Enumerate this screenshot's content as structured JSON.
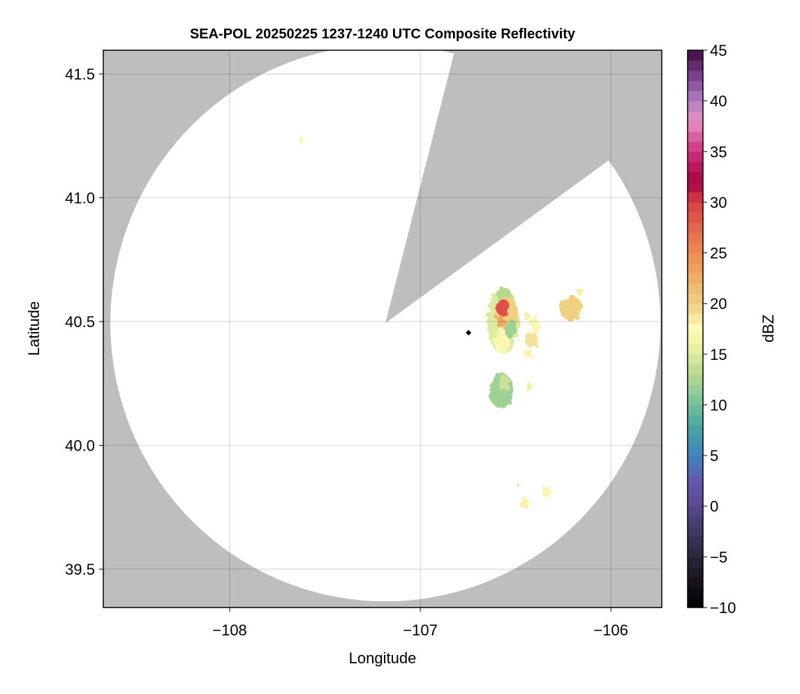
{
  "chart_data": {
    "type": "heatmap",
    "title": "SEA-POL 20250225 1237-1240 UTC Composite Reflectivity",
    "xlabel": "Longitude",
    "ylabel": "Latitude",
    "xlim": [
      -108.663,
      -105.733
    ],
    "ylim": [
      39.345,
      41.596
    ],
    "xticks": [
      -108,
      -107,
      -106
    ],
    "xtick_labels": [
      "−108",
      "−107",
      "−106"
    ],
    "yticks": [
      39.5,
      40.0,
      40.5,
      41.0,
      41.5
    ],
    "ytick_labels": [
      "39.5",
      "40.0",
      "40.5",
      "41.0",
      "41.5"
    ],
    "grid": true,
    "background_color": "#bebebe",
    "radar": {
      "center": [
        -107.183,
        40.494
      ],
      "range_deg_lon": 1.443,
      "range_deg_lat": 1.124,
      "blocked_sector_edges": [
        [
          -106.842,
          41.525
        ],
        [
          -106.062,
          41.123
        ]
      ]
    },
    "marker": {
      "lon": -106.747,
      "lat": 40.455,
      "shape": "diamond",
      "color": "#000000"
    },
    "echo_cells": [
      {
        "lon": -106.565,
        "lat": 40.5,
        "rlon": 0.085,
        "rlat": 0.13,
        "dbz": 15
      },
      {
        "lon": -106.56,
        "lat": 40.6,
        "rlon": 0.04,
        "rlat": 0.04,
        "dbz": 13
      },
      {
        "lon": -106.55,
        "lat": 40.53,
        "rlon": 0.06,
        "rlat": 0.07,
        "dbz": 20
      },
      {
        "lon": -106.565,
        "lat": 40.555,
        "rlon": 0.035,
        "rlat": 0.035,
        "dbz": 29
      },
      {
        "lon": -106.58,
        "lat": 40.5,
        "rlon": 0.025,
        "rlat": 0.025,
        "dbz": 23
      },
      {
        "lon": -106.575,
        "lat": 40.42,
        "rlon": 0.04,
        "rlat": 0.05,
        "dbz": 17
      },
      {
        "lon": -106.525,
        "lat": 40.47,
        "rlon": 0.03,
        "rlat": 0.04,
        "dbz": 12
      },
      {
        "lon": -106.4,
        "lat": 40.485,
        "rlon": 0.025,
        "rlat": 0.04,
        "dbz": 17
      },
      {
        "lon": -106.415,
        "lat": 40.425,
        "rlon": 0.035,
        "rlat": 0.03,
        "dbz": 19
      },
      {
        "lon": -106.43,
        "lat": 40.37,
        "rlon": 0.025,
        "rlat": 0.015,
        "dbz": 18
      },
      {
        "lon": -106.44,
        "lat": 40.52,
        "rlon": 0.015,
        "rlat": 0.015,
        "dbz": 16
      },
      {
        "lon": -106.575,
        "lat": 40.22,
        "rlon": 0.065,
        "rlat": 0.07,
        "dbz": 12
      },
      {
        "lon": -106.56,
        "lat": 40.25,
        "rlon": 0.03,
        "rlat": 0.03,
        "dbz": 14
      },
      {
        "lon": -106.43,
        "lat": 40.235,
        "rlon": 0.018,
        "rlat": 0.017,
        "dbz": 16
      },
      {
        "lon": -106.21,
        "lat": 40.555,
        "rlon": 0.06,
        "rlat": 0.05,
        "dbz": 20
      },
      {
        "lon": -106.16,
        "lat": 40.62,
        "rlon": 0.018,
        "rlat": 0.015,
        "dbz": 16
      },
      {
        "lon": -106.458,
        "lat": 39.768,
        "rlon": 0.025,
        "rlat": 0.02,
        "dbz": 18
      },
      {
        "lon": -106.34,
        "lat": 39.81,
        "rlon": 0.025,
        "rlat": 0.02,
        "dbz": 17
      },
      {
        "lon": -106.487,
        "lat": 39.84,
        "rlon": 0.01,
        "rlat": 0.008,
        "dbz": 15
      },
      {
        "lon": -107.63,
        "lat": 41.237,
        "rlon": 0.015,
        "rlat": 0.01,
        "dbz": 17
      }
    ],
    "colorbar": {
      "label": "dBZ",
      "range": [
        -10,
        45
      ],
      "ticks": [
        -10,
        -5,
        0,
        5,
        10,
        15,
        20,
        25,
        30,
        35,
        40,
        45
      ],
      "tick_labels": [
        "−10",
        "−5",
        "0",
        "5",
        "10",
        "15",
        "20",
        "25",
        "30",
        "35",
        "40",
        "45"
      ],
      "colormap_stops": [
        [
          -10,
          "#000000"
        ],
        [
          -5,
          "#2b2538"
        ],
        [
          0,
          "#574a8f"
        ],
        [
          2.5,
          "#6656ae"
        ],
        [
          5,
          "#3e86c0"
        ],
        [
          8,
          "#4aa6a0"
        ],
        [
          10,
          "#72c09b"
        ],
        [
          13,
          "#b6da90"
        ],
        [
          16,
          "#eef3a6"
        ],
        [
          17.5,
          "#fdfab6"
        ],
        [
          20,
          "#f0d080"
        ],
        [
          25,
          "#f08a50"
        ],
        [
          30,
          "#d94045"
        ],
        [
          32,
          "#a70045"
        ],
        [
          35,
          "#d0307f"
        ],
        [
          38,
          "#e690c2"
        ],
        [
          40,
          "#b07fc0"
        ],
        [
          42,
          "#8a4a9a"
        ],
        [
          45,
          "#3f0a42"
        ]
      ]
    }
  }
}
